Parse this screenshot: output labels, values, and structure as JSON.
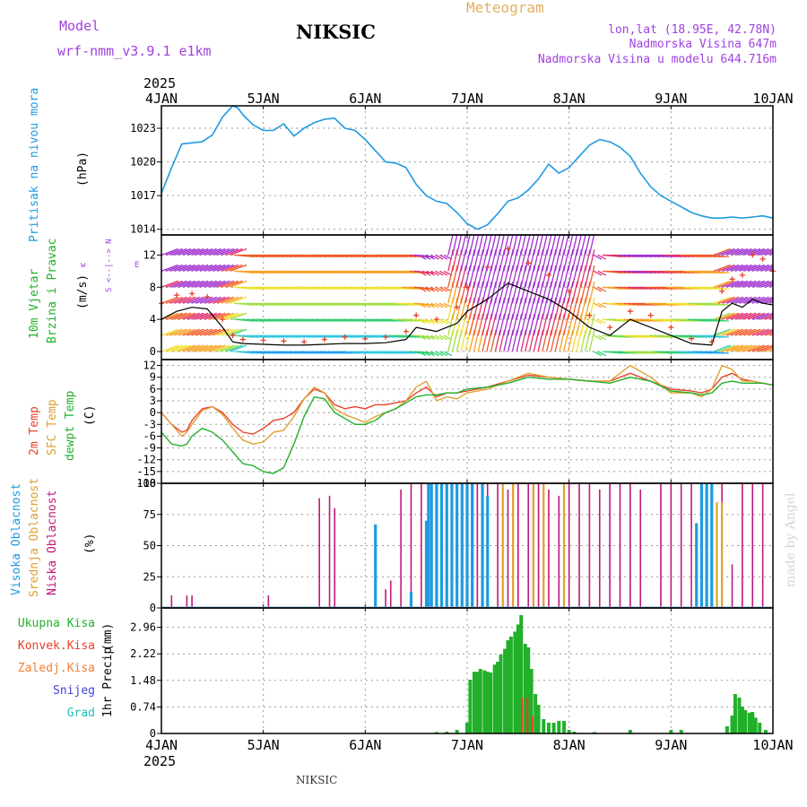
{
  "header": {
    "model_label": "Model",
    "model_name": "wrf-nmm_v3.9.1 e1km",
    "station": "NIKSIC",
    "title": "Meteogram",
    "coords": "lon,lat (18.95E, 42.78N)",
    "elevation": "Nadmorska Visina 647m",
    "model_elevation": "Nadmorska Visina u modelu 644.716m",
    "footer_station": "NIKSIC",
    "watermark": "made by Angel"
  },
  "colors": {
    "pressure": "#1e9be0",
    "wind_label": "#22b02a",
    "wind_speed": "#000000",
    "gust": "#e8402a",
    "temp_2m": "#e8402a",
    "temp_sfc": "#e0a030",
    "dewpoint": "#22b02a",
    "cloud_high": "#1e9be0",
    "cloud_mid": "#e0a030",
    "cloud_low": "#c0187a",
    "precip_total": "#22b02a",
    "precip_conv": "#e8402a",
    "precip_frz": "#f08030",
    "snow": "#4040e0",
    "hail": "#20c0c0",
    "header_purple": "#a040e0",
    "header_orange": "#e0b060",
    "grid": "#9a9a9a"
  },
  "chart_data": [
    {
      "type": "line",
      "name": "pressure",
      "ylabel": "Pritisak na nivou mora",
      "unit": "(hPa)",
      "yticks": [
        1014,
        1017,
        1020,
        1023
      ],
      "ylim": [
        1013.5,
        1025.0
      ],
      "x_ticks": [
        "4JAN",
        "5JAN",
        "6JAN",
        "7JAN",
        "8JAN",
        "9JAN",
        "10JAN"
      ],
      "year": "2025",
      "x_range_days": [
        0,
        6
      ],
      "series": [
        {
          "x": [
            0,
            0.1,
            0.2,
            0.3,
            0.4,
            0.5,
            0.6,
            0.7,
            0.75,
            0.8,
            0.9,
            1.0,
            1.1,
            1.2,
            1.3,
            1.4,
            1.5,
            1.6,
            1.7,
            1.8,
            1.9,
            2.0,
            2.1,
            2.2,
            2.3,
            2.4,
            2.5,
            2.6,
            2.7,
            2.8,
            2.9,
            3.0,
            3.1,
            3.2,
            3.3,
            3.4,
            3.5,
            3.6,
            3.7,
            3.8,
            3.9,
            4.0,
            4.1,
            4.2,
            4.3,
            4.4,
            4.5,
            4.6,
            4.7,
            4.8,
            4.9,
            5.0,
            5.1,
            5.2,
            5.3,
            5.4,
            5.5,
            5.6,
            5.7,
            5.8,
            5.9,
            6.0
          ],
          "y": [
            1017.2,
            1019.5,
            1021.6,
            1021.7,
            1021.8,
            1022.4,
            1024.0,
            1025.0,
            1024.8,
            1024.2,
            1023.3,
            1022.8,
            1022.8,
            1023.4,
            1022.3,
            1023.0,
            1023.5,
            1023.8,
            1023.9,
            1023.0,
            1022.8,
            1022.0,
            1021.0,
            1020.0,
            1019.9,
            1019.5,
            1018.0,
            1017.0,
            1016.5,
            1016.3,
            1015.5,
            1014.5,
            1014.0,
            1014.4,
            1015.4,
            1016.5,
            1016.8,
            1017.5,
            1018.5,
            1019.8,
            1019.0,
            1019.5,
            1020.5,
            1021.5,
            1022.0,
            1021.8,
            1021.3,
            1020.5,
            1019.0,
            1017.8,
            1017.0,
            1016.5,
            1016.0,
            1015.5,
            1015.2,
            1015.0,
            1015.0,
            1015.1,
            1015.0,
            1015.1,
            1015.2,
            1015.0
          ]
        }
      ]
    },
    {
      "type": "line",
      "name": "wind",
      "ylabel": "10m Vjetar Brzina i Pravac",
      "unit": "(m/s)",
      "compass": [
        "w",
        "<-- | -->",
        "E",
        "N",
        "S"
      ],
      "yticks": [
        0,
        4,
        8,
        12
      ],
      "ylim": [
        -1,
        14.5
      ],
      "series": [
        {
          "name": "speed",
          "x": [
            0,
            0.15,
            0.3,
            0.45,
            0.6,
            0.7,
            0.8,
            1.0,
            1.2,
            1.4,
            1.6,
            1.8,
            2.0,
            2.2,
            2.4,
            2.5,
            2.7,
            2.9,
            3.0,
            3.2,
            3.4,
            3.6,
            3.8,
            4.0,
            4.2,
            4.4,
            4.6,
            4.8,
            5.0,
            5.2,
            5.4,
            5.5,
            5.6,
            5.7,
            5.8,
            5.9,
            6.0
          ],
          "y": [
            4,
            5,
            5.5,
            5.3,
            3,
            1.2,
            1.0,
            0.9,
            0.8,
            0.8,
            0.9,
            1,
            1,
            1.1,
            1.5,
            3,
            2.5,
            3.5,
            5,
            6.5,
            8.5,
            7.5,
            6.5,
            5,
            3,
            2,
            4,
            3,
            2,
            1,
            0.8,
            5,
            6,
            5.5,
            6.5,
            6,
            5.8
          ]
        },
        {
          "name": "gust",
          "x": [
            0,
            0.15,
            0.3,
            0.45,
            0.6,
            0.7,
            0.8,
            1.0,
            1.2,
            1.4,
            1.6,
            1.8,
            2.0,
            2.2,
            2.4,
            2.5,
            2.7,
            2.9,
            3.0,
            3.2,
            3.4,
            3.6,
            3.8,
            4.0,
            4.2,
            4.4,
            4.6,
            4.8,
            5.0,
            5.2,
            5.4,
            5.5,
            5.6,
            5.7,
            5.8,
            5.9,
            6.0
          ],
          "y": [
            6,
            7,
            7.2,
            6.8,
            4,
            2,
            1.5,
            1.4,
            1.3,
            1.2,
            1.5,
            1.8,
            1.6,
            1.8,
            2.5,
            4.5,
            4,
            5.5,
            8,
            10.5,
            12.8,
            11,
            9.5,
            7.5,
            4.5,
            3,
            5,
            4.5,
            3,
            1.6,
            1.2,
            7.5,
            9,
            9.5,
            12,
            11.5,
            10
          ]
        }
      ]
    },
    {
      "type": "line",
      "name": "temperature",
      "ylabels": [
        "2m Temp",
        "SFC Temp",
        "dewpt Temp"
      ],
      "unit": "(C)",
      "yticks": [
        12,
        9,
        6,
        3,
        0,
        -3,
        -6,
        -9,
        -12,
        -15,
        -18
      ],
      "ylim": [
        -18,
        13.5
      ],
      "series": [
        {
          "name": "2m Temp",
          "x": [
            0,
            0.1,
            0.2,
            0.25,
            0.3,
            0.4,
            0.5,
            0.6,
            0.7,
            0.8,
            0.9,
            1.0,
            1.1,
            1.2,
            1.3,
            1.4,
            1.5,
            1.6,
            1.7,
            1.8,
            1.9,
            2.0,
            2.1,
            2.2,
            2.3,
            2.4,
            2.5,
            2.6,
            2.7,
            2.8,
            2.9,
            3.0,
            3.2,
            3.4,
            3.6,
            3.8,
            4.0,
            4.2,
            4.4,
            4.6,
            4.8,
            5.0,
            5.2,
            5.3,
            5.4,
            5.5,
            5.6,
            5.7,
            5.8,
            5.9,
            6.0
          ],
          "y": [
            0,
            -3,
            -5,
            -4.5,
            -2,
            1,
            1.5,
            0,
            -3,
            -5,
            -5.5,
            -4,
            -2,
            -1.5,
            0,
            3.5,
            6,
            5,
            2,
            1,
            1.5,
            1,
            2,
            2,
            2.5,
            3,
            5,
            6.5,
            4,
            5,
            5,
            5.5,
            6.5,
            8,
            9.5,
            9,
            8.5,
            8,
            8,
            10,
            8,
            6,
            5.5,
            5,
            6,
            9,
            10,
            8.5,
            8,
            7.5,
            7
          ]
        },
        {
          "name": "SFC Temp",
          "x": [
            0,
            0.1,
            0.2,
            0.25,
            0.3,
            0.4,
            0.5,
            0.6,
            0.7,
            0.8,
            0.9,
            1.0,
            1.1,
            1.2,
            1.3,
            1.4,
            1.5,
            1.6,
            1.7,
            1.8,
            1.9,
            2.0,
            2.1,
            2.2,
            2.3,
            2.4,
            2.5,
            2.6,
            2.7,
            2.8,
            2.9,
            3.0,
            3.2,
            3.4,
            3.6,
            3.8,
            4.0,
            4.2,
            4.4,
            4.6,
            4.8,
            5.0,
            5.2,
            5.3,
            5.4,
            5.5,
            5.6,
            5.7,
            5.8,
            5.9,
            6.0
          ],
          "y": [
            0,
            -3,
            -6,
            -5,
            -3,
            0.5,
            1.5,
            -0.5,
            -4,
            -7,
            -8,
            -7.5,
            -5,
            -4.5,
            -1,
            3.5,
            6.5,
            5,
            1,
            -0.5,
            -1.5,
            -2.5,
            -1,
            0,
            1,
            3,
            6.5,
            8,
            3,
            4,
            3.5,
            5,
            6,
            8,
            10,
            9,
            8.5,
            8,
            8,
            12,
            9,
            5,
            5,
            4,
            6,
            12,
            11,
            8,
            8,
            7.5,
            7
          ]
        },
        {
          "name": "dewpt Temp",
          "x": [
            0,
            0.1,
            0.2,
            0.25,
            0.3,
            0.4,
            0.5,
            0.6,
            0.7,
            0.8,
            0.9,
            1.0,
            1.1,
            1.2,
            1.3,
            1.4,
            1.5,
            1.6,
            1.7,
            1.8,
            1.9,
            2.0,
            2.1,
            2.2,
            2.3,
            2.4,
            2.5,
            2.6,
            2.7,
            2.8,
            2.9,
            3.0,
            3.2,
            3.4,
            3.6,
            3.8,
            4.0,
            4.2,
            4.4,
            4.6,
            4.8,
            5.0,
            5.2,
            5.3,
            5.4,
            5.5,
            5.6,
            5.7,
            5.8,
            5.9,
            6.0
          ],
          "y": [
            -5,
            -8,
            -8.5,
            -8,
            -6,
            -4,
            -5,
            -7,
            -10,
            -13,
            -13.5,
            -15,
            -15.5,
            -14,
            -8,
            -1,
            4,
            3.5,
            0,
            -1.5,
            -3,
            -3,
            -2,
            0,
            1,
            2.5,
            4,
            4.5,
            4.5,
            5,
            5,
            6,
            6.5,
            7.5,
            9,
            8.5,
            8.5,
            8,
            7.5,
            9,
            8,
            5.5,
            5,
            4.5,
            5,
            7.5,
            8,
            7.5,
            7.5,
            7.5,
            7
          ]
        }
      ]
    },
    {
      "type": "bar",
      "name": "clouds",
      "ylabels": [
        "Visoka Oblacnost",
        "Srednja Oblacnost",
        "Niska Oblacnost"
      ],
      "unit": "(%)",
      "yticks": [
        0,
        25,
        50,
        75,
        100
      ],
      "ylim": [
        0,
        100
      ],
      "series": [
        {
          "name": "Niska Oblacnost",
          "x": [
            0.1,
            0.25,
            0.3,
            1.05,
            1.55,
            1.65,
            1.7,
            2.2,
            2.25,
            2.35,
            2.45,
            2.55,
            2.65,
            2.7,
            2.75,
            2.85,
            2.95,
            3.05,
            3.1,
            3.2,
            3.3,
            3.4,
            3.5,
            3.6,
            3.7,
            3.8,
            3.9,
            4.0,
            4.1,
            4.2,
            4.3,
            4.4,
            4.5,
            4.6,
            4.7,
            4.9,
            5.0,
            5.1,
            5.2,
            5.3,
            5.4,
            5.5,
            5.6,
            5.7,
            5.8,
            5.9
          ],
          "y": [
            10,
            10,
            10,
            10,
            88,
            90,
            80,
            15,
            22,
            95,
            100,
            100,
            100,
            95,
            100,
            100,
            100,
            100,
            100,
            100,
            100,
            95,
            100,
            100,
            100,
            95,
            90,
            100,
            100,
            100,
            95,
            100,
            100,
            100,
            95,
            100,
            100,
            100,
            100,
            100,
            100,
            100,
            35,
            100,
            100,
            100
          ]
        },
        {
          "name": "Srednja Oblacnost",
          "x": [
            2.75,
            3.35,
            3.45,
            3.65,
            3.75,
            3.95,
            5.45,
            5.5
          ],
          "y": [
            20,
            100,
            100,
            100,
            100,
            100,
            85,
            85
          ]
        },
        {
          "name": "Visoka Oblacnost",
          "x": [
            2.1,
            2.45,
            2.6,
            2.62,
            2.65,
            2.7,
            2.75,
            2.8,
            2.85,
            2.9,
            2.95,
            3.0,
            3.05,
            3.15,
            3.2,
            5.25,
            5.3,
            5.35,
            5.4
          ],
          "y": [
            67,
            13,
            70,
            100,
            100,
            100,
            100,
            100,
            100,
            100,
            100,
            100,
            100,
            100,
            90,
            68,
            100,
            100,
            100
          ]
        }
      ]
    },
    {
      "type": "bar",
      "name": "precip",
      "legend": [
        "Ukupna Kisa",
        "Konvek.Kisa",
        "Zaledj.Kisa",
        "Snijeg",
        "Grad"
      ],
      "ylabel": "1hr Precip",
      "unit": "(mm)",
      "yticks": [
        0,
        0.74,
        1.48,
        2.22,
        2.96
      ],
      "ylim": [
        0,
        3.5
      ],
      "series": [
        {
          "name": "Ukupna Kisa",
          "x": [
            2.7,
            2.8,
            2.9,
            3.0,
            3.03,
            3.07,
            3.1,
            3.13,
            3.17,
            3.2,
            3.23,
            3.27,
            3.3,
            3.33,
            3.37,
            3.4,
            3.43,
            3.47,
            3.5,
            3.53,
            3.57,
            3.6,
            3.63,
            3.67,
            3.7,
            3.75,
            3.8,
            3.85,
            3.9,
            3.95,
            4.0,
            4.05,
            4.25,
            4.6,
            5.0,
            5.1,
            5.55,
            5.6,
            5.63,
            5.67,
            5.7,
            5.73,
            5.77,
            5.8,
            5.83,
            5.87,
            5.93
          ],
          "y": [
            0.04,
            0.05,
            0.1,
            0.3,
            1.5,
            1.72,
            1.72,
            1.8,
            1.76,
            1.72,
            1.7,
            1.92,
            2.0,
            2.2,
            2.36,
            2.6,
            2.7,
            2.84,
            3.04,
            3.3,
            2.5,
            2.4,
            1.8,
            1.1,
            0.8,
            0.4,
            0.3,
            0.3,
            0.35,
            0.35,
            0.1,
            0.05,
            0.04,
            0.1,
            0.1,
            0.1,
            0.2,
            0.5,
            1.1,
            1.0,
            0.75,
            0.65,
            0.58,
            0.6,
            0.44,
            0.3,
            0.1
          ]
        },
        {
          "name": "Konvek.Kisa",
          "x": [
            3.55,
            3.6,
            3.65
          ],
          "y": [
            1.0,
            1.0,
            0.5
          ]
        }
      ]
    }
  ]
}
